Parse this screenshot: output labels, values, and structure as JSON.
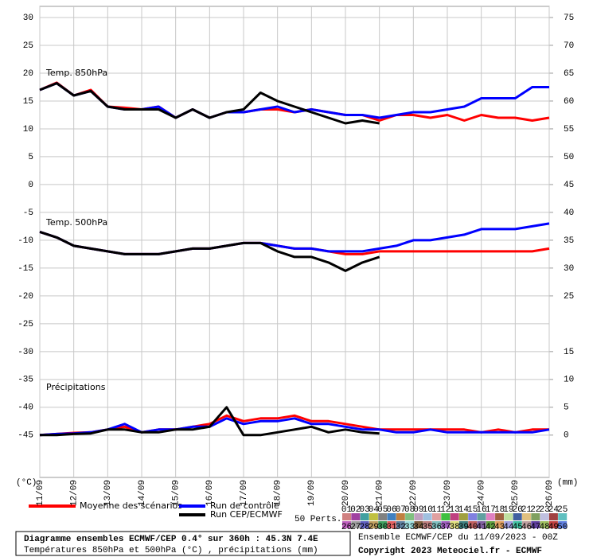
{
  "chart_data": {
    "type": "line",
    "panel_labels": [
      "Temp. 850hPa",
      "Temp. 500hPa",
      "Précipitations"
    ],
    "y_unit": "(°C)",
    "y2_unit": "(mm)",
    "categories": [
      "11/09",
      null,
      "12/09",
      null,
      "13/09",
      null,
      "14/09",
      null,
      "15/09",
      null,
      "16/09",
      null,
      "17/09",
      null,
      "18/09",
      null,
      "19/09",
      null,
      "20/09",
      null,
      "21/09",
      null,
      "22/09",
      null,
      "23/09",
      null,
      "24/09",
      null,
      "25/09",
      null,
      "26/09"
    ],
    "ylim": [
      -52.6,
      32
    ],
    "yticks": [
      30,
      25,
      20,
      15,
      10,
      5,
      0,
      -5,
      -10,
      -15,
      -20,
      -25,
      -30,
      -35,
      -40,
      -45
    ],
    "y2lim": [
      -7.6,
      77
    ],
    "y2ticks": [
      75,
      70,
      65,
      60,
      55,
      50,
      45,
      40,
      35,
      30,
      25,
      15,
      10,
      5,
      0
    ],
    "grid": true,
    "series": [
      {
        "name": "Moyenne des scénarios",
        "color": "#ff0000",
        "t850": [
          17,
          18.3,
          16,
          17,
          14,
          13.8,
          13.5,
          14,
          12,
          13.5,
          12,
          13,
          13,
          13.5,
          13.5,
          13,
          13.5,
          13,
          12.5,
          12.5,
          11.5,
          12.5,
          12.5,
          12,
          12.5,
          11.5,
          12.5,
          12,
          12,
          11.5,
          12
        ],
        "t500": [
          -8.5,
          -9.5,
          -11,
          -11.5,
          -12,
          -12.5,
          -12.5,
          -12.5,
          -12,
          -11.5,
          -11.5,
          -11,
          -10.5,
          -10.5,
          -11,
          -11.5,
          -11.5,
          -12,
          -12.5,
          -12.5,
          -12,
          -12,
          -12,
          -12,
          -12,
          -12,
          -12,
          -12,
          -12,
          -12,
          -11.5
        ],
        "precip": [
          0,
          0.2,
          0.4,
          0.5,
          1,
          1.5,
          0.5,
          1,
          1,
          1.5,
          2,
          3.5,
          2.5,
          3,
          3,
          3.5,
          2.5,
          2.5,
          2,
          1.5,
          1,
          1,
          1,
          1,
          1,
          1,
          0.5,
          1,
          0.5,
          1,
          1
        ]
      },
      {
        "name": "Run de contrôle",
        "color": "#0000ff",
        "t850": [
          17,
          18.2,
          16,
          16.8,
          14,
          13.5,
          13.5,
          14,
          12,
          13.5,
          12,
          13,
          13,
          13.5,
          14,
          13,
          13.5,
          13,
          12.5,
          12.5,
          12,
          12.5,
          13,
          13,
          13.5,
          14,
          15.5,
          15.5,
          15.5,
          17.5,
          17.5
        ],
        "t500": [
          -8.5,
          -9.5,
          -11,
          -11.5,
          -12,
          -12.5,
          -12.5,
          -12.5,
          -12,
          -11.5,
          -11.5,
          -11,
          -10.5,
          -10.5,
          -11,
          -11.5,
          -11.5,
          -12,
          -12,
          -12,
          -11.5,
          -11,
          -10,
          -10,
          -9.5,
          -9,
          -8,
          -8,
          -8,
          -7.5,
          -7
        ],
        "precip": [
          0,
          0.2,
          0.3,
          0.5,
          1,
          2,
          0.5,
          1,
          1,
          1.5,
          1.5,
          3,
          2,
          2.5,
          2.5,
          3,
          2,
          2,
          1.5,
          1,
          1,
          0.5,
          0.5,
          1,
          0.5,
          0.5,
          0.5,
          0.5,
          0.5,
          0.5,
          1
        ]
      },
      {
        "name": "Run CEP/ECMWF",
        "color": "#000000",
        "t850": [
          17,
          18.2,
          16,
          16.8,
          14,
          13.5,
          13.5,
          13.5,
          12,
          13.5,
          12,
          13,
          13.5,
          16.5,
          15,
          14,
          13,
          12,
          11,
          11.5,
          11,
          null,
          null,
          null,
          null,
          null,
          null,
          null,
          null,
          null,
          null
        ],
        "t500": [
          -8.5,
          -9.5,
          -11,
          -11.5,
          -12,
          -12.5,
          -12.5,
          -12.5,
          -12,
          -11.5,
          -11.5,
          -11,
          -10.5,
          -10.5,
          -12,
          -13,
          -13,
          -14,
          -15.5,
          -14,
          -13,
          null,
          null,
          null,
          null,
          null,
          null,
          null,
          null,
          null,
          null
        ],
        "precip": [
          0,
          0,
          0.2,
          0.3,
          1,
          1,
          0.5,
          0.5,
          1,
          1,
          1.5,
          5,
          0,
          0,
          0.5,
          1,
          1.5,
          0.5,
          1,
          0.5,
          0.3,
          null,
          null,
          null,
          null,
          null,
          null,
          null,
          null,
          null,
          null
        ]
      }
    ],
    "perturbations_label": "50 Perts.",
    "perturbations": [
      {
        "label": "01",
        "color": "#d08080"
      },
      {
        "label": "02",
        "color": "#a040a0"
      },
      {
        "label": "03",
        "color": "#40a0a0"
      },
      {
        "label": "04",
        "color": "#c0c040"
      },
      {
        "label": "05",
        "color": "#808080"
      },
      {
        "label": "06",
        "color": "#4080c0"
      },
      {
        "label": "07",
        "color": "#c08040"
      },
      {
        "label": "08",
        "color": "#80c080"
      },
      {
        "label": "09",
        "color": "#c0a0c0"
      },
      {
        "label": "10",
        "color": "#a0c0e0"
      },
      {
        "label": "11",
        "color": "#e0a0a0"
      },
      {
        "label": "12",
        "color": "#40c040"
      },
      {
        "label": "13",
        "color": "#c04080"
      },
      {
        "label": "14",
        "color": "#a0a040"
      },
      {
        "label": "15",
        "color": "#8080e0"
      },
      {
        "label": "16",
        "color": "#60a0a0"
      },
      {
        "label": "17",
        "color": "#e080c0"
      },
      {
        "label": "18",
        "color": "#a06040"
      },
      {
        "label": "19",
        "color": "#c0e0a0"
      },
      {
        "label": "20",
        "color": "#4060a0"
      },
      {
        "label": "21",
        "color": "#e0c080"
      },
      {
        "label": "22",
        "color": "#80a060"
      },
      {
        "label": "23",
        "color": "#c0c0e0"
      },
      {
        "label": "24",
        "color": "#a04040"
      },
      {
        "label": "25",
        "color": "#60c0c0"
      },
      {
        "label": "26",
        "color": "#c060c0"
      },
      {
        "label": "27",
        "color": "#a0a0a0"
      },
      {
        "label": "28",
        "color": "#6060c0"
      },
      {
        "label": "29",
        "color": "#c0a060"
      },
      {
        "label": "30",
        "color": "#40a060"
      },
      {
        "label": "31",
        "color": "#e06060"
      },
      {
        "label": "32",
        "color": "#6080a0"
      },
      {
        "label": "33",
        "color": "#a0e0e0"
      },
      {
        "label": "34",
        "color": "#806040"
      },
      {
        "label": "35",
        "color": "#c08080"
      },
      {
        "label": "36",
        "color": "#80c0c0"
      },
      {
        "label": "37",
        "color": "#a060c0"
      },
      {
        "label": "38",
        "color": "#e0e080"
      },
      {
        "label": "39",
        "color": "#408080"
      },
      {
        "label": "40",
        "color": "#c06060"
      },
      {
        "label": "41",
        "color": "#8060a0"
      },
      {
        "label": "42",
        "color": "#60a040"
      },
      {
        "label": "43",
        "color": "#e0a060"
      },
      {
        "label": "44",
        "color": "#a0a0e0"
      },
      {
        "label": "45",
        "color": "#40c0a0"
      },
      {
        "label": "46",
        "color": "#c0a0a0"
      },
      {
        "label": "47",
        "color": "#6040a0"
      },
      {
        "label": "48",
        "color": "#a0c060"
      },
      {
        "label": "49",
        "color": "#c04040"
      },
      {
        "label": "50",
        "color": "#6080e0"
      }
    ],
    "caption": {
      "title": "Diagramme ensembles ECMWF/CEP 0.4° sur 360h : 45.3N 7.4E",
      "subtitle": "Températures 850hPa et 500hPa (°C) , précipitations (mm)",
      "run": "Ensemble ECMWF/CEP du 11/09/2023 - 00Z",
      "copyright": "Copyright 2023 Meteociel.fr - ECMWF"
    }
  }
}
